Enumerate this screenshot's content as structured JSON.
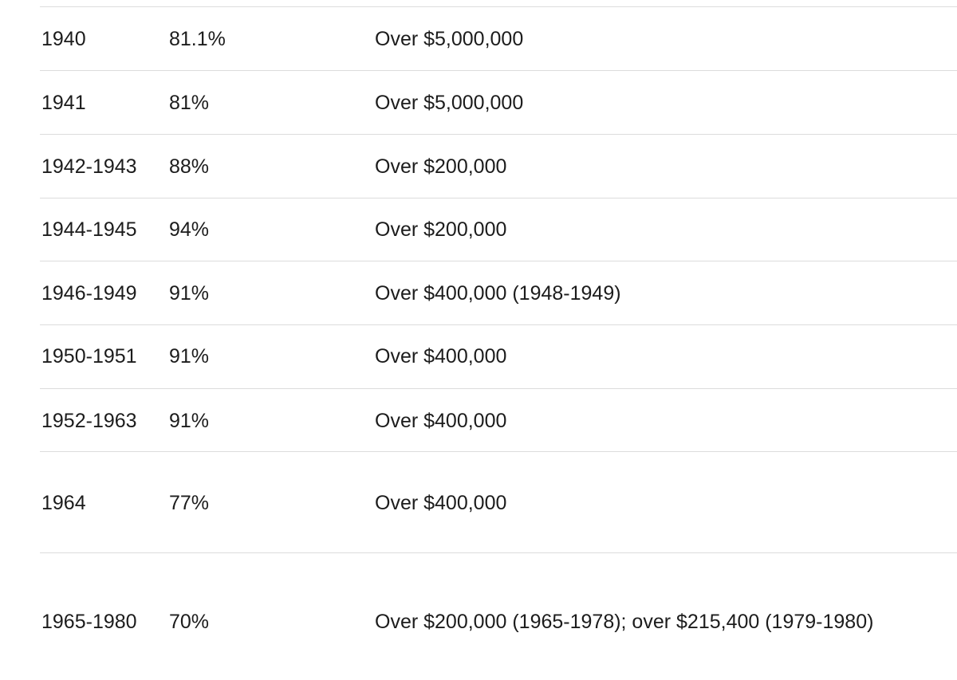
{
  "table": {
    "rows": [
      [
        "1940",
        "81.1%",
        "Over $5,000,000"
      ],
      [
        "1941",
        "81%",
        "Over $5,000,000"
      ],
      [
        "1942-1943",
        "88%",
        "Over $200,000"
      ],
      [
        "1944-1945",
        "94%",
        "Over $200,000"
      ],
      [
        "1946-1949",
        "91%",
        "Over $400,000 (1948-1949)"
      ],
      [
        "1950-1951",
        "91%",
        "Over $400,000"
      ],
      [
        "1952-1963",
        "91%",
        "Over $400,000"
      ],
      [
        "1964",
        "77%",
        "Over $400,000"
      ],
      [
        "1965-1980",
        "70%",
        "Over $200,000 (1965-1978); over $215,400 (1979-1980)"
      ]
    ]
  }
}
